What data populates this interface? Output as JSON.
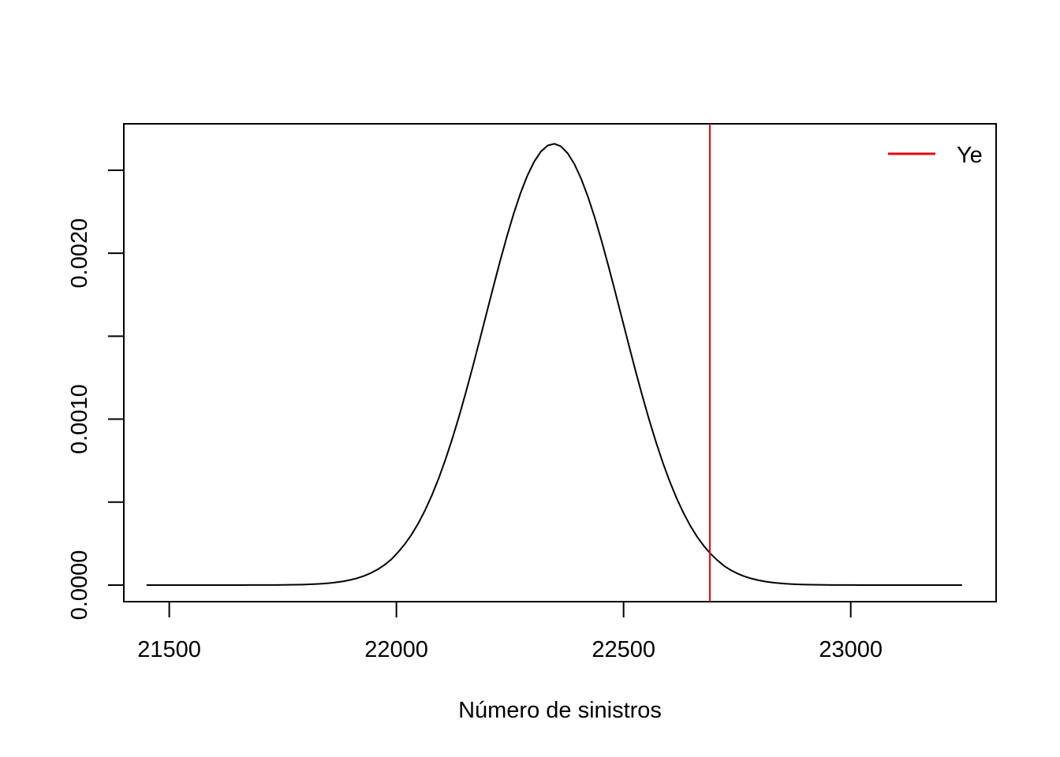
{
  "chart_data": {
    "type": "line",
    "title": "",
    "xlabel": "Número de sinistros",
    "ylabel": "",
    "xlim": [
      21400,
      23320
    ],
    "ylim": [
      -0.0001,
      0.00278
    ],
    "xticks": [
      21500,
      22000,
      22500,
      23000
    ],
    "xtick_labels": [
      "21500",
      "22000",
      "22500",
      "23000"
    ],
    "yticks": [
      0.0,
      0.0005,
      0.001,
      0.0015,
      0.002,
      0.0025
    ],
    "ytick_labels": [
      "0.0000",
      "",
      "0.0010",
      "",
      "0.0020",
      ""
    ],
    "grid": false,
    "density": {
      "x_start": 21450,
      "x_end": 23245,
      "mean": 22346,
      "sd": 150,
      "peak": 0.00266
    },
    "series": [
      {
        "name": "",
        "color": "#000000",
        "x": [],
        "y": []
      }
    ],
    "vline": {
      "name": "Ye",
      "x": 22690,
      "color": "#e3000f"
    },
    "legend": {
      "position": "top-right",
      "entries": [
        {
          "label": "Ye",
          "color": "#e3000f"
        }
      ]
    }
  }
}
